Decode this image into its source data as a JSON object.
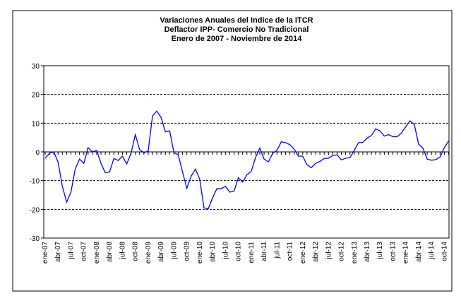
{
  "chart_data": {
    "type": "line",
    "title": [
      "Variaciones Anuales del Indice de la ITCR",
      "Deflactor IPP- Comercio No Tradicional",
      "Enero de 2007 -  Noviembre de 2014"
    ],
    "categories": [
      "ene-07",
      null,
      null,
      "abr-07",
      null,
      null,
      "jul-07",
      null,
      null,
      "oct-07",
      null,
      null,
      "ene-08",
      null,
      null,
      "abr-08",
      null,
      null,
      "jul-08",
      null,
      null,
      "oct-08",
      null,
      null,
      "ene-09",
      null,
      null,
      "abr-09",
      null,
      null,
      "jul-09",
      null,
      null,
      "oct-09",
      null,
      null,
      "ene-10",
      null,
      null,
      "abr-10",
      null,
      null,
      "jul-10",
      null,
      null,
      "oct-10",
      null,
      null,
      "ene-11",
      null,
      null,
      "abr-11",
      null,
      null,
      "jul-11",
      null,
      null,
      "oct-11",
      null,
      null,
      "ene-12",
      null,
      null,
      "abr-12",
      null,
      null,
      "jul-12",
      null,
      null,
      "oct-12",
      null,
      null,
      "ene-13",
      null,
      null,
      "abr-13",
      null,
      null,
      "jul-13",
      null,
      null,
      "oct-13",
      null,
      null,
      "ene-14",
      null,
      null,
      "abr-14",
      null,
      null,
      "jul-14",
      null,
      null,
      "oct-14",
      null
    ],
    "series": [
      {
        "color": "#0000ff",
        "values": [
          -2.2,
          -0.5,
          0,
          -3.5,
          -12,
          -17.5,
          -14,
          -6,
          -2.5,
          -4,
          1.5,
          0,
          0.5,
          -4,
          -7.3,
          -7,
          -2.3,
          -3,
          -1.5,
          -4.2,
          -0.5,
          6,
          0.8,
          -0.3,
          0.3,
          12.5,
          14.2,
          12,
          7,
          7.3,
          -0.3,
          -1,
          -7,
          -12.7,
          -8.5,
          -6,
          -9.5,
          -19.5,
          -19.8,
          -16,
          -12.8,
          -12.8,
          -12,
          -14,
          -13.7,
          -9,
          -10.5,
          -8,
          -6.8,
          -2,
          1.3,
          -2.5,
          -3.5,
          -0.5,
          0.5,
          3.5,
          3.2,
          2.5,
          1,
          -1.5,
          -1.5,
          -4.5,
          -5.5,
          -4,
          -3.3,
          -2.3,
          -2.2,
          -1.3,
          -1,
          -2.8,
          -2.2,
          -2,
          0.5,
          3.2,
          3.3,
          4.8,
          5.7,
          8,
          7.3,
          5.5,
          6,
          5.3,
          5.3,
          6.5,
          8.8,
          10.8,
          9.5,
          2.7,
          1.3,
          -2.5,
          -2.9,
          -2.7,
          -1.8,
          1.5,
          3.8
        ]
      }
    ],
    "ylim": [
      -30,
      30
    ],
    "yticks": [
      -30,
      -20,
      -10,
      0,
      10,
      20,
      30
    ],
    "grid": true
  }
}
